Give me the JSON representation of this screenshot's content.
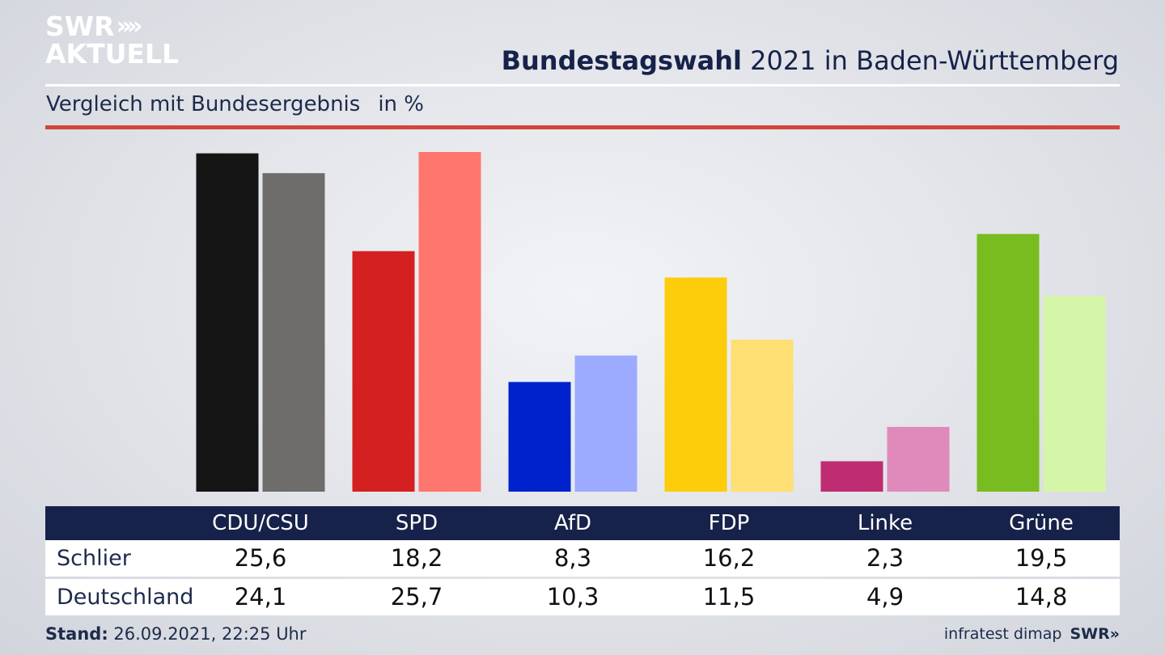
{
  "logo": {
    "line1": "SWR",
    "line2": "AKTUELL",
    "chevrons": "»"
  },
  "title": {
    "bold": "Bundestagswahl",
    "rest": "2021 in Baden-Württemberg"
  },
  "subtitle": {
    "text": "Vergleich mit Bundesergebnis",
    "unit": "in %"
  },
  "footer": {
    "stand_label": "Stand:",
    "stand_value": "26.09.2021, 22:25 Uhr",
    "source": "infratest dimap",
    "brand": "SWR»"
  },
  "chart_data": {
    "type": "bar",
    "title": "Bundestagswahl 2021 in Baden-Württemberg",
    "subtitle": "Vergleich mit Bundesergebnis",
    "ylabel": "in %",
    "categories": [
      "CDU/CSU",
      "SPD",
      "AfD",
      "FDP",
      "Linke",
      "Grüne"
    ],
    "series": [
      {
        "name": "Schlier",
        "values_text": [
          "25,6",
          "18,2",
          "8,3",
          "16,2",
          "2,3",
          "19,5"
        ],
        "values": [
          25.6,
          18.2,
          8.3,
          16.2,
          2.3,
          19.5
        ]
      },
      {
        "name": "Deutschland",
        "values_text": [
          "24,1",
          "25,7",
          "10,3",
          "11,5",
          "4,9",
          "14,8"
        ],
        "values": [
          24.1,
          25.7,
          10.3,
          11.5,
          4.9,
          14.8
        ]
      }
    ],
    "colors": {
      "Schlier": [
        "#141414",
        "#d42020",
        "#0022cc",
        "#fdcc0a",
        "#be2c72",
        "#79bc1f"
      ],
      "Deutschland": [
        "#6e6d6b",
        "#ff766e",
        "#9cabff",
        "#fddf73",
        "#df8abb",
        "#d5f5a8"
      ]
    },
    "ylim": [
      0,
      25.7
    ],
    "grid": false,
    "legend": "table-below"
  }
}
